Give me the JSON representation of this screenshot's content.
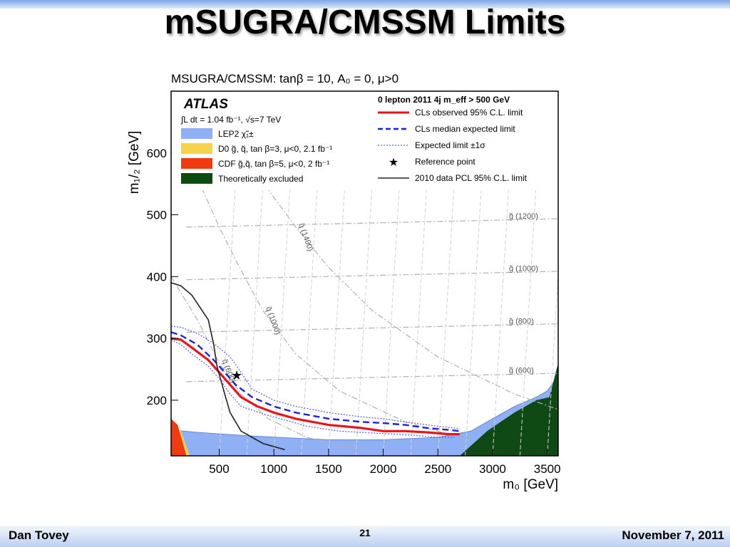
{
  "slide": {
    "title": "mSUGRA/CMSSM Limits",
    "author": "Dan Tovey",
    "page": "21",
    "date": "November 7, 2011"
  },
  "chart_data": {
    "type": "line",
    "title": "MSUGRA/CMSSM: tanβ = 10, A₀ = 0, μ>0",
    "experiment": "ATLAS",
    "luminosity": "∫L dt = 1.04 fb⁻¹, √s=7 TeV",
    "analysis": "0 lepton 2011 4j m_eff > 500 GeV",
    "xlabel": "m₀ [GeV]",
    "ylabel": "m₁/₂ [GeV]",
    "xlim": [
      60,
      3600
    ],
    "ylim": [
      110,
      700
    ],
    "xticks": [
      500,
      1000,
      1500,
      2000,
      2500,
      3000,
      3500
    ],
    "yticks": [
      200,
      300,
      400,
      500,
      600
    ],
    "colors": {
      "observed": "#e8141c",
      "expected": "#1a26d6",
      "band": "#5060e0",
      "pcl": "#222222",
      "lep2": "#8fb0f5",
      "d0": "#f5d34a",
      "cdf": "#f03a10",
      "theory": "#0f4a14",
      "contour": "#b0b0b0"
    },
    "legend_left": [
      {
        "key": "lep2",
        "label": "LEP2 χ̃₁±"
      },
      {
        "key": "d0",
        "label": "D0 g̃, q̃, tan β=3, μ<0, 2.1 fb⁻¹"
      },
      {
        "key": "cdf",
        "label": "CDF g̃,q̃, tan β=5, μ<0, 2 fb⁻¹"
      },
      {
        "key": "theory",
        "label": "Theoretically excluded"
      }
    ],
    "legend_right": [
      {
        "key": "observed",
        "label": "CLs observed 95% C.L. limit"
      },
      {
        "key": "expected",
        "label": "CLs median expected limit"
      },
      {
        "key": "band",
        "label": "Expected limit ±1σ"
      },
      {
        "key": "star",
        "label": "Reference point"
      },
      {
        "key": "pcl",
        "label": "2010 data PCL 95% C.L. limit"
      }
    ],
    "series": [
      {
        "name": "CLs observed 95% C.L. limit",
        "x": [
          60,
          150,
          250,
          400,
          500,
          600,
          700,
          850,
          1000,
          1200,
          1500,
          1800,
          2000,
          2200,
          2400,
          2600,
          2700
        ],
        "y": [
          300,
          298,
          285,
          265,
          245,
          225,
          205,
          190,
          180,
          170,
          160,
          155,
          150,
          150,
          148,
          145,
          145
        ]
      },
      {
        "name": "CLs median expected limit",
        "x": [
          60,
          150,
          300,
          450,
          550,
          650,
          800,
          1000,
          1200,
          1500,
          1800,
          2000,
          2200,
          2400,
          2600,
          2700
        ],
        "y": [
          310,
          305,
          290,
          265,
          245,
          225,
          205,
          190,
          180,
          170,
          165,
          163,
          160,
          155,
          152,
          150
        ]
      },
      {
        "name": "Expected limit +1σ",
        "x": [
          60,
          150,
          300,
          450,
          600,
          700,
          800,
          1000,
          1200,
          1500,
          1800,
          2000,
          2200,
          2400,
          2600,
          2700
        ],
        "y": [
          320,
          318,
          308,
          292,
          270,
          245,
          218,
          200,
          190,
          180,
          173,
          170,
          165,
          160,
          156,
          154
        ]
      },
      {
        "name": "Expected limit −1σ",
        "x": [
          60,
          150,
          250,
          400,
          500,
          600,
          700,
          900,
          1100,
          1300,
          1600,
          1900,
          2100,
          2300,
          2500,
          2650
        ],
        "y": [
          298,
          290,
          275,
          255,
          235,
          210,
          190,
          178,
          168,
          158,
          150,
          147,
          145,
          143,
          140,
          140
        ]
      },
      {
        "name": "2010 data PCL 95% C.L. limit",
        "x": [
          60,
          150,
          250,
          400,
          450,
          480,
          550,
          600,
          700,
          800,
          900,
          1000,
          1100
        ],
        "y": [
          390,
          385,
          370,
          330,
          290,
          255,
          210,
          180,
          150,
          140,
          130,
          125,
          120
        ]
      }
    ],
    "regions": {
      "lep2": {
        "x": [
          60,
          300,
          800,
          1500,
          2000,
          2500,
          2800,
          3000,
          3200,
          3400,
          3500,
          3600,
          3600,
          60
        ],
        "y": [
          152,
          148,
          142,
          136,
          136,
          140,
          150,
          170,
          190,
          205,
          215,
          240,
          110,
          110
        ]
      },
      "d0": {
        "x": [
          60,
          150,
          230,
          200,
          60
        ],
        "y": [
          158,
          150,
          110,
          110,
          110
        ]
      },
      "cdf": {
        "x": [
          60,
          120,
          200,
          130,
          60
        ],
        "y": [
          170,
          160,
          110,
          110,
          110
        ]
      },
      "theory": {
        "x": [
          2700,
          2950,
          3200,
          3400,
          3520,
          3600,
          3600
        ],
        "y": [
          110,
          150,
          180,
          200,
          205,
          260,
          110
        ]
      }
    },
    "squark_contours": [
      {
        "label": "q̃ (600)",
        "x": [
          60,
          300,
          500,
          700,
          950,
          1300,
          1800
        ],
        "y": [
          400,
          330,
          260,
          210,
          170,
          140,
          120
        ]
      },
      {
        "label": "q̃ (1000)",
        "x": [
          300,
          500,
          700,
          900,
          1200,
          1600,
          2200,
          2800
        ],
        "y": [
          560,
          480,
          410,
          345,
          275,
          215,
          165,
          135
        ]
      },
      {
        "label": "q̃ (1400)",
        "x": [
          400,
          700,
          950,
          1200,
          1500,
          1900,
          2500,
          3200,
          3600
        ],
        "y": [
          660,
          600,
          540,
          480,
          415,
          345,
          270,
          210,
          185
        ]
      }
    ],
    "gluino_contours": [
      {
        "label": "g̃ (600)",
        "m12": 230
      },
      {
        "label": "g̃ (800)",
        "m12": 310
      },
      {
        "label": "g̃ (1000)",
        "m12": 395
      },
      {
        "label": "g̃ (1200)",
        "m12": 480
      }
    ],
    "reference_point": {
      "x": 660,
      "y": 240
    }
  }
}
